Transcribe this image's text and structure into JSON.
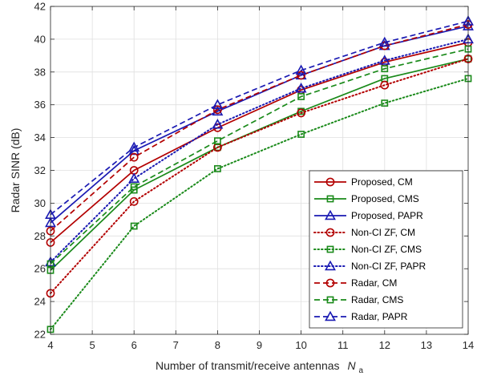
{
  "chart_data": {
    "type": "line",
    "xlabel": "Number of transmit/receive antennas",
    "xlabel_symbol": "N",
    "xlabel_subscript": "a",
    "ylabel": "Radar SINR (dB)",
    "xlim": [
      4,
      14
    ],
    "ylim": [
      22,
      42
    ],
    "xticks": [
      "4",
      "5",
      "6",
      "7",
      "8",
      "9",
      "10",
      "11",
      "12",
      "13",
      "14"
    ],
    "yticks": [
      "22",
      "24",
      "26",
      "28",
      "30",
      "32",
      "34",
      "36",
      "38",
      "40",
      "42"
    ],
    "grid": true,
    "legend_position": "right",
    "x": [
      4,
      6,
      8,
      10,
      12,
      14
    ],
    "series": [
      {
        "name": "Proposed, CM",
        "color": "#b30000",
        "dash": "solid",
        "marker": "circle",
        "values": [
          27.6,
          32.0,
          34.6,
          36.9,
          38.6,
          39.8
        ]
      },
      {
        "name": "Proposed, CMS",
        "color": "#1a8a1a",
        "dash": "solid",
        "marker": "square",
        "values": [
          25.9,
          30.8,
          33.4,
          35.6,
          37.6,
          38.8
        ]
      },
      {
        "name": "Proposed, PAPR",
        "color": "#1a1ab3",
        "dash": "solid",
        "marker": "triangle",
        "values": [
          28.8,
          33.2,
          35.6,
          37.8,
          39.6,
          40.8
        ]
      },
      {
        "name": "Non-CI ZF, CM",
        "color": "#b30000",
        "dash": "dot",
        "marker": "circle",
        "values": [
          24.5,
          30.1,
          33.4,
          35.5,
          37.2,
          38.8
        ]
      },
      {
        "name": "Non-CI ZF, CMS",
        "color": "#1a8a1a",
        "dash": "dot",
        "marker": "square",
        "values": [
          22.3,
          28.6,
          32.1,
          34.2,
          36.1,
          37.6
        ]
      },
      {
        "name": "Non-CI ZF, PAPR",
        "color": "#1a1ab3",
        "dash": "dot",
        "marker": "triangle",
        "values": [
          26.4,
          31.5,
          34.8,
          37.0,
          38.7,
          40.0
        ]
      },
      {
        "name": "Radar, CM",
        "color": "#b30000",
        "dash": "dash",
        "marker": "circle",
        "values": [
          28.3,
          32.8,
          35.7,
          37.8,
          39.6,
          40.9
        ]
      },
      {
        "name": "Radar, CMS",
        "color": "#1a8a1a",
        "dash": "dash",
        "marker": "square",
        "values": [
          26.3,
          31.0,
          33.8,
          36.5,
          38.2,
          39.4
        ]
      },
      {
        "name": "Radar, PAPR",
        "color": "#1a1ab3",
        "dash": "dash",
        "marker": "triangle",
        "values": [
          29.3,
          33.4,
          36.0,
          38.1,
          39.8,
          41.1
        ]
      }
    ]
  }
}
